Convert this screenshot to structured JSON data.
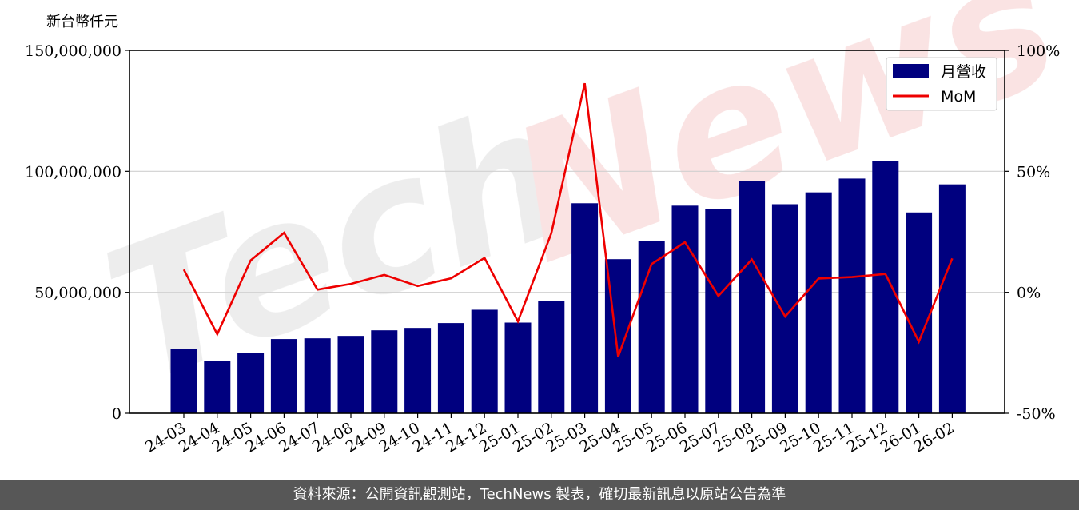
{
  "chart_data": {
    "type": "bar",
    "unit_label": "新台幣仟元",
    "categories": [
      "24-03",
      "24-04",
      "24-05",
      "24-06",
      "24-07",
      "24-08",
      "24-09",
      "24-10",
      "24-11",
      "24-12",
      "25-01",
      "25-02",
      "25-03",
      "25-04",
      "25-05",
      "25-06",
      "25-07",
      "25-08",
      "25-09",
      "25-10",
      "25-11",
      "25-12",
      "26-01",
      "26-02"
    ],
    "series": [
      {
        "name": "月營收",
        "type": "bar",
        "axis": "left",
        "color": "#00007f",
        "values": [
          26500000,
          21800000,
          24800000,
          30700000,
          31000000,
          32000000,
          34300000,
          35300000,
          37300000,
          42800000,
          37500000,
          46500000,
          86800000,
          63700000,
          71200000,
          85800000,
          84500000,
          96000000,
          86400000,
          91300000,
          97000000,
          104300000,
          83000000,
          94600000
        ]
      },
      {
        "name": "MoM",
        "type": "line",
        "axis": "right",
        "color": "#ee0000",
        "values": [
          9.4,
          -17.3,
          13.2,
          24.6,
          1.1,
          3.5,
          7.2,
          2.6,
          5.8,
          14.2,
          -12.0,
          24.4,
          86.4,
          -26.6,
          11.7,
          20.7,
          -1.5,
          13.6,
          -10.0,
          5.7,
          6.3,
          7.6,
          -20.4,
          14.0
        ]
      }
    ],
    "y_left": {
      "lim": [
        0,
        150000000
      ],
      "ticks": [
        "0",
        "50,000,000",
        "100,000,000",
        "150,000,000"
      ],
      "tick_values": [
        0,
        50000000,
        100000000,
        150000000
      ]
    },
    "y_right": {
      "lim": [
        -50,
        100
      ],
      "ticks": [
        "-50%",
        "0%",
        "50%",
        "100%"
      ],
      "tick_values": [
        -50,
        0,
        50,
        100
      ]
    },
    "grid": "horizontal",
    "legend_position": "top-right"
  },
  "watermark": "TechNews",
  "footer": {
    "text": "資料來源：公開資訊觀測站，TechNews 製表，確切最新訊息以原站公告為準"
  }
}
